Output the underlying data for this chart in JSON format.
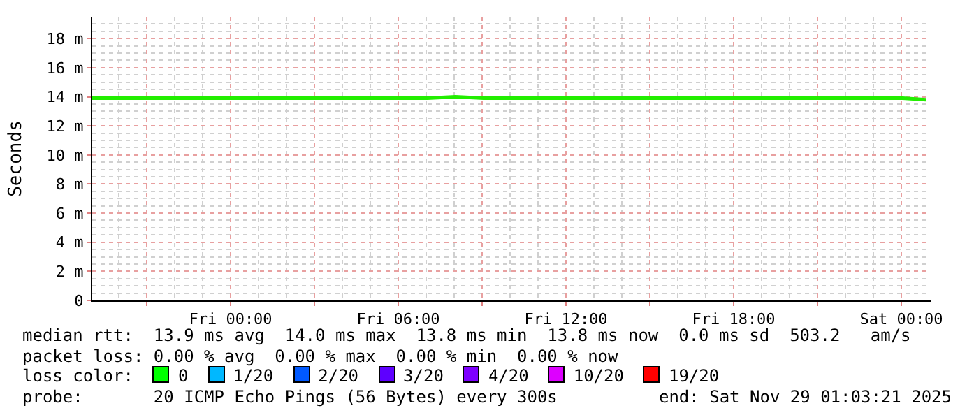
{
  "chart_data": {
    "type": "line",
    "ylabel": "Seconds",
    "x": [
      "2025-11-27T19:03",
      "2025-11-27T20:03",
      "2025-11-27T21:03",
      "2025-11-27T22:03",
      "2025-11-27T23:03",
      "2025-11-28T00:03",
      "2025-11-28T01:03",
      "2025-11-28T02:03",
      "2025-11-28T03:03",
      "2025-11-28T04:03",
      "2025-11-28T05:03",
      "2025-11-28T06:03",
      "2025-11-28T07:03",
      "2025-11-28T08:03",
      "2025-11-28T09:03",
      "2025-11-28T10:03",
      "2025-11-28T11:03",
      "2025-11-28T12:03",
      "2025-11-28T13:03",
      "2025-11-28T14:03",
      "2025-11-28T15:03",
      "2025-11-28T16:03",
      "2025-11-28T17:03",
      "2025-11-28T18:03",
      "2025-11-28T19:03",
      "2025-11-28T20:03",
      "2025-11-28T21:03",
      "2025-11-28T22:03",
      "2025-11-28T23:03",
      "2025-11-29T00:03",
      "2025-11-29T00:53"
    ],
    "series": [
      {
        "color": "#22ee00",
        "values": [
          13.9,
          13.9,
          13.9,
          13.9,
          13.9,
          13.9,
          13.9,
          13.9,
          13.9,
          13.9,
          13.9,
          13.9,
          13.9,
          14.0,
          13.9,
          13.9,
          13.9,
          13.9,
          13.9,
          13.9,
          13.9,
          13.9,
          13.9,
          13.9,
          13.9,
          13.9,
          13.9,
          13.9,
          13.9,
          13.9,
          13.8
        ]
      }
    ],
    "xlim": [
      "2025-11-27T19:03",
      "2025-11-29T01:03"
    ],
    "xticks": [
      {
        "value": "2025-11-27T21:00",
        "label": null
      },
      {
        "value": "2025-11-28T00:00",
        "label": "Fri 00:00"
      },
      {
        "value": "2025-11-28T03:00",
        "label": null
      },
      {
        "value": "2025-11-28T06:00",
        "label": "Fri 06:00"
      },
      {
        "value": "2025-11-28T09:00",
        "label": null
      },
      {
        "value": "2025-11-28T12:00",
        "label": "Fri 12:00"
      },
      {
        "value": "2025-11-28T15:00",
        "label": null
      },
      {
        "value": "2025-11-28T18:00",
        "label": "Fri 18:00"
      },
      {
        "value": "2025-11-28T21:00",
        "label": null
      },
      {
        "value": "2025-11-29T00:00",
        "label": "Sat 00:00"
      }
    ],
    "ylim": [
      0,
      19.5
    ],
    "yticks": [
      {
        "value": 0,
        "label": "0"
      },
      {
        "value": 2,
        "label": "2 m"
      },
      {
        "value": 4,
        "label": "4 m"
      },
      {
        "value": 6,
        "label": "6 m"
      },
      {
        "value": 8,
        "label": "8 m"
      },
      {
        "value": 10,
        "label": "10 m"
      },
      {
        "value": 12,
        "label": "12 m"
      },
      {
        "value": 14,
        "label": "14 m"
      },
      {
        "value": 16,
        "label": "16 m"
      },
      {
        "value": 18,
        "label": "18 m"
      }
    ],
    "grid": true,
    "marker": "none",
    "line_style": "solid",
    "annotations": [
      "median rtt:  13.9 ms avg  14.0 ms max  13.8 ms min  13.8 ms now  0.0 ms sd  503.2   am/s",
      "packet loss: 0.00 % avg  0.00 % max  0.00 % min  0.00 % now",
      "loss color:",
      "0",
      "1/20",
      "2/20",
      "3/20",
      "4/20",
      "10/20",
      "19/20",
      "probe:       20 ICMP Echo Pings (56 Bytes) every 300s",
      "end: Sat Nov 29 01:03:21 2025"
    ]
  }
}
